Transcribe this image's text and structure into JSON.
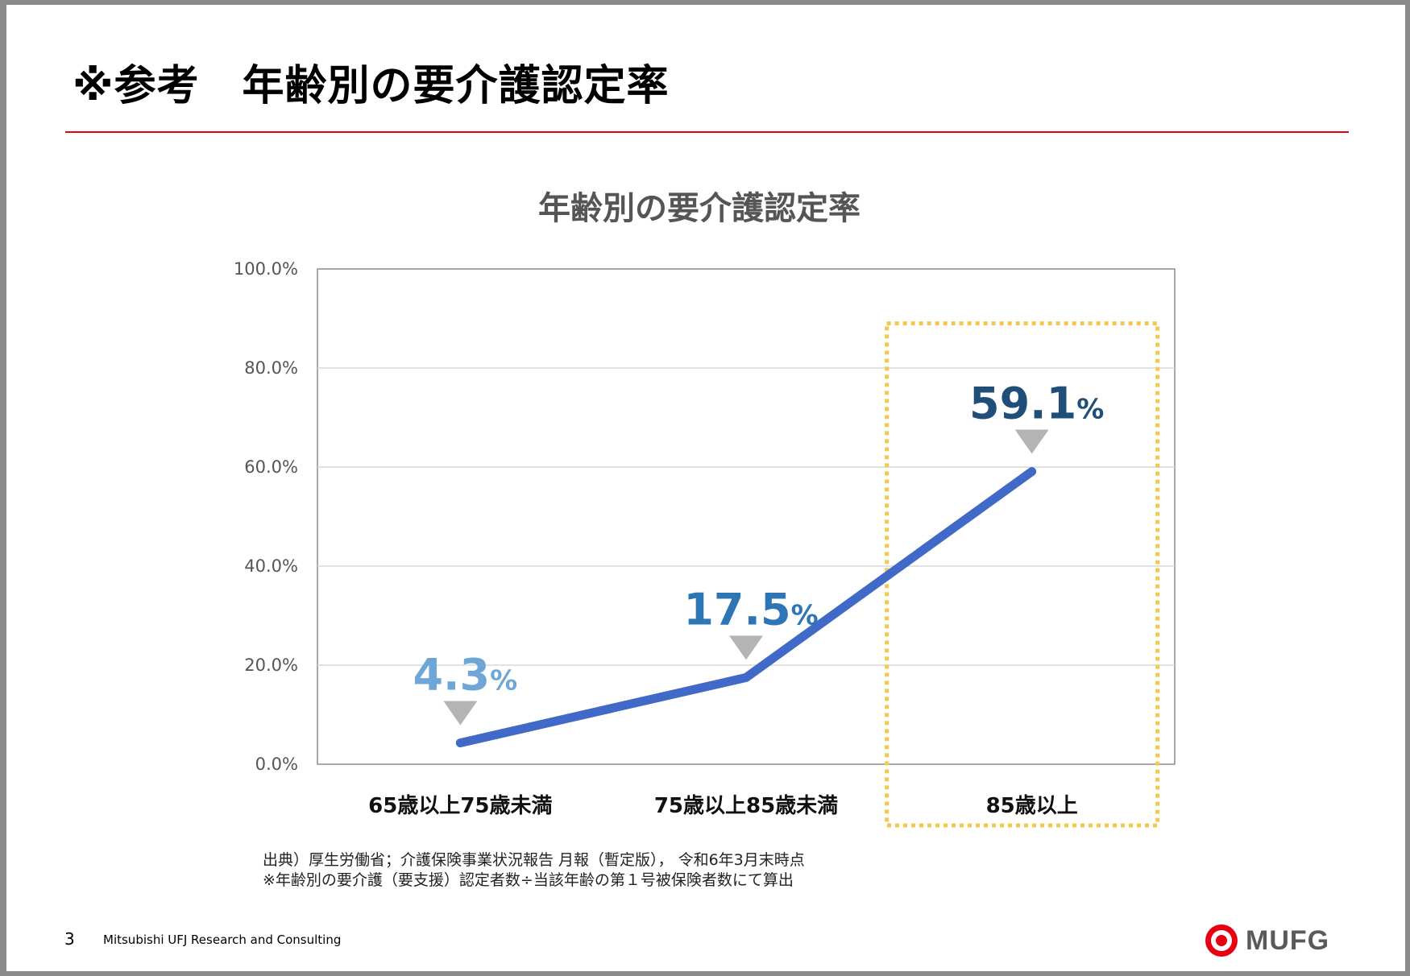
{
  "slide": {
    "title": "※参考　年齢別の要介護認定率",
    "page_number": "3",
    "company": "Mitsubishi UFJ Research and Consulting",
    "logo_text": "MUFG",
    "accent_color": "#e60012"
  },
  "notes": {
    "source": "出典）厚生労働省；介護保険事業状況報告 月報（暫定版）， 令和6年3月末時点",
    "method": "※年齢別の要介護（要支援）認定者数÷当該年齢の第１号被保険者数にて算出"
  },
  "chart_data": {
    "type": "line",
    "title": "年齢別の要介護認定率",
    "categories": [
      "65歳以上75歳未満",
      "75歳以上85歳未満",
      "85歳以上"
    ],
    "series": [
      {
        "name": "要介護認定率",
        "values": [
          4.3,
          17.5,
          59.1
        ],
        "color": "#4169c8"
      }
    ],
    "ylim": [
      0,
      100
    ],
    "yticks": [
      "0.0%",
      "20.0%",
      "40.0%",
      "60.0%",
      "80.0%",
      "100.0%"
    ],
    "data_labels": [
      {
        "value": "4.3",
        "unit": "%",
        "color": "#6fa6d8"
      },
      {
        "value": "17.5",
        "unit": "%",
        "color": "#2e75b6"
      },
      {
        "value": "59.1",
        "unit": "%",
        "color": "#1f4e79"
      }
    ],
    "highlight_category": "85歳以上",
    "highlight_color": "#f2c94c",
    "grid": true,
    "xlabel": "",
    "ylabel": ""
  }
}
